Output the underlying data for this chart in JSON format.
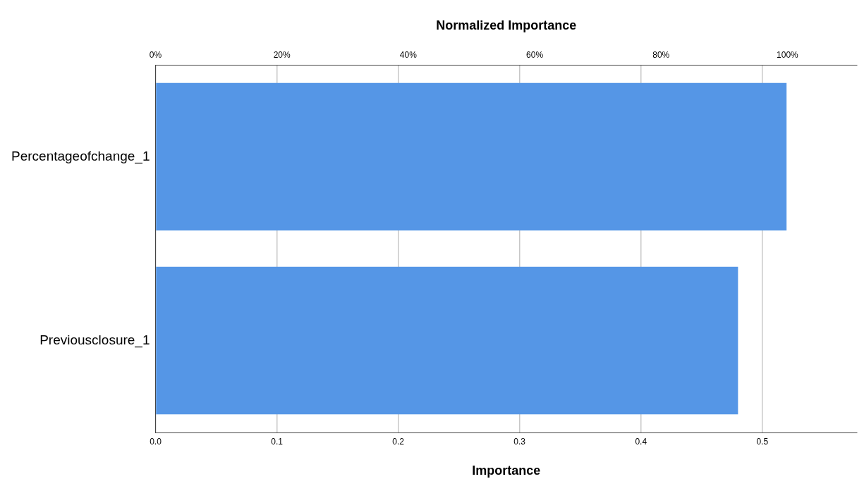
{
  "chart_data": {
    "type": "bar",
    "orientation": "horizontal",
    "categories": [
      "Percentageofchange_1",
      "Previousclosure_1"
    ],
    "values": [
      0.52,
      0.48
    ],
    "color": "#5596e6",
    "xlabel": "Importance",
    "x2label": "Normalized Importance",
    "xlim": [
      0,
      0.578
    ],
    "xticks": [
      {
        "value": 0,
        "label": "0.0"
      },
      0.1,
      0.2,
      0.3,
      0.4,
      0.5
    ],
    "x2lim": [
      0,
      111
    ],
    "x2ticks": [
      {
        "value": 0,
        "label": "0%"
      },
      {
        "value": 20,
        "label": "20%"
      },
      {
        "value": 40,
        "label": "40%"
      },
      {
        "value": 60,
        "label": "60%"
      },
      {
        "value": 80,
        "label": "80%"
      },
      {
        "value": 100,
        "label": "100%"
      }
    ],
    "grid": "x",
    "legend": false
  }
}
